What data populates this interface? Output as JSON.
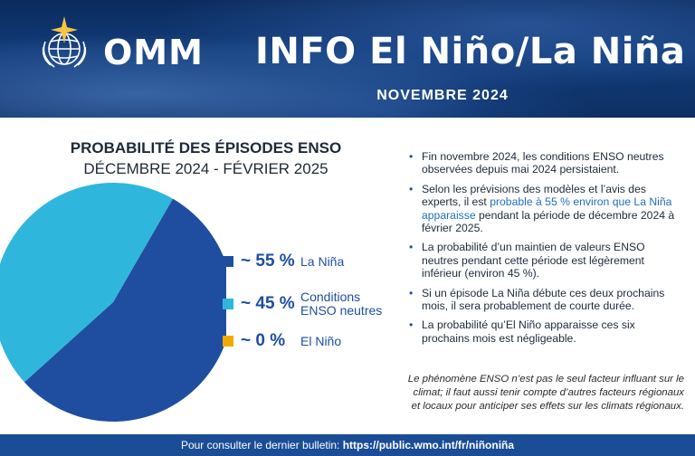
{
  "header": {
    "org": "OMM",
    "title": "INFO El Niño/La Niña",
    "month": "NOVEMBRE 2024"
  },
  "chart_data": {
    "type": "pie",
    "title": "PROBABILITÉ DES ÉPISODES ENSO",
    "subtitle": "DÉCEMBRE 2024 - FÉVRIER 2025",
    "slices": [
      {
        "label": "La Niña",
        "value": 55,
        "display": "~ 55 %",
        "color": "#1f4ea0"
      },
      {
        "label": "Conditions\nENSO neutres",
        "value": 45,
        "display": "~ 45 %",
        "color": "#2fb6dc"
      },
      {
        "label": "El Niño",
        "value": 0,
        "display": "~ 0 %",
        "color": "#f2a900"
      }
    ]
  },
  "bullets": [
    {
      "text": "Fin novembre 2024, les conditions ENSO neutres observées depuis mai 2024 persistaient."
    },
    {
      "pre": "Selon les prévisions des modèles et l’avis des experts, il est ",
      "link": "probable à 55 % environ que La Niña apparaisse",
      "post": " pendant la période de décembre 2024 à février 2025."
    },
    {
      "text": "La probabilité d’un maintien de valeurs ENSO neutres pendant cette période est légèrement inférieur (environ 45 %)."
    },
    {
      "text": "Si un épisode La Niña débute ces deux prochains mois, il sera probablement de courte durée."
    },
    {
      "text": "La probabilité qu’El Niño apparaisse ces six prochains mois est négligeable."
    }
  ],
  "note": "Le phénomène ENSO n’est pas le seul facteur influant sur le climat; il faut aussi tenir compte d’autres facteurs régionaux et locaux pour anticiper ses effets sur les climats régionaux.",
  "footer": {
    "prefix": "Pour consulter le dernier bulletin: ",
    "url": "https://public.wmo.int/fr/niñoniña"
  }
}
